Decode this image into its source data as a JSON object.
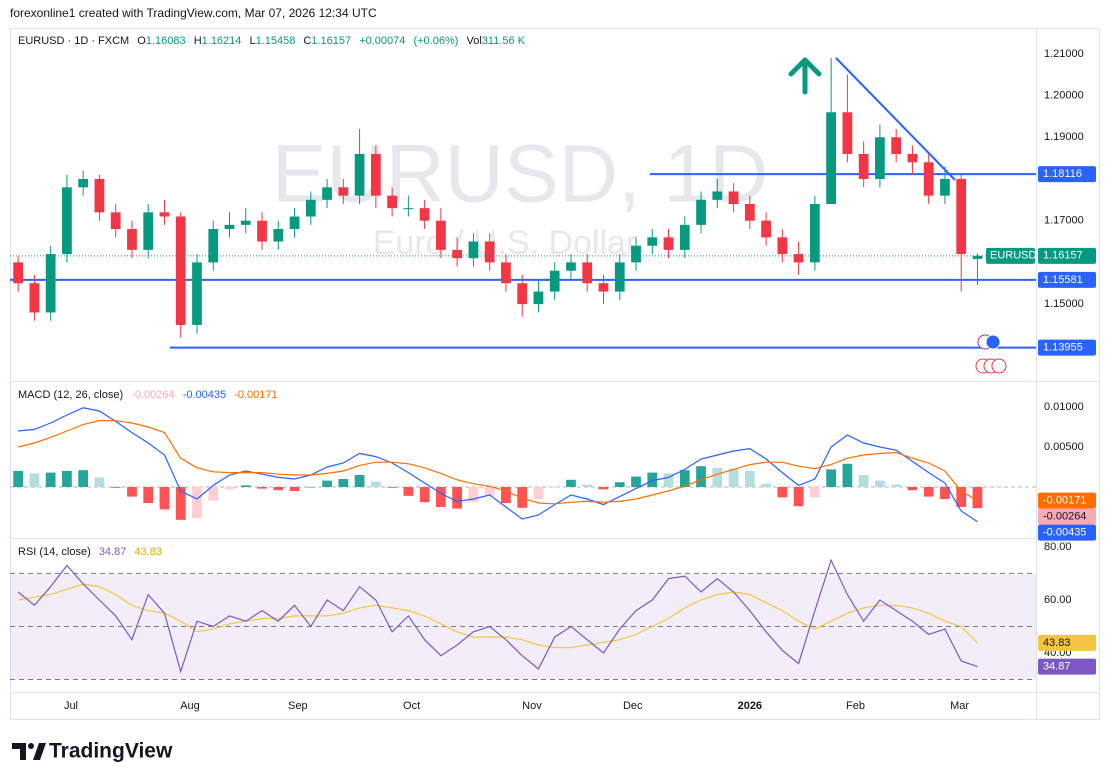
{
  "header": {
    "attribution": "forexonline1 created with TradingView.com, Mar 07, 2026 12:34 UTC"
  },
  "chart_data": [
    {
      "type": "candlestick",
      "title": "EURUSD · 1D · FXCM",
      "watermark_title": "EURUSD, 1D",
      "watermark_subtitle": "Euro / U.S. Dollar",
      "symbol": "EURUSD",
      "ohlc_labels": [
        "O",
        "H",
        "L",
        "C"
      ],
      "change": {
        "value": 0.00074,
        "label": "+0.00074"
      },
      "change_pct": {
        "value": 0.06,
        "label": "(+0.06%)"
      },
      "volume_label": "Vol",
      "volume": {
        "value": 311560,
        "label": "311.56 K"
      },
      "up_color": "#089981",
      "down_color": "#f23645",
      "level_color": "#2962ff",
      "open": [
        1.16,
        1.155,
        1.148,
        1.162,
        1.178,
        1.18,
        1.172,
        1.168,
        1.163,
        1.172,
        1.171,
        1.145,
        1.16,
        1.168,
        1.169,
        1.17,
        1.165,
        1.168,
        1.171,
        1.175,
        1.178,
        1.176,
        1.186,
        1.176,
        1.173,
        1.173,
        1.17,
        1.163,
        1.161,
        1.165,
        1.16,
        1.155,
        1.15,
        1.153,
        1.158,
        1.16,
        1.155,
        1.153,
        1.16,
        1.164,
        1.166,
        1.163,
        1.169,
        1.175,
        1.177,
        1.174,
        1.17,
        1.166,
        1.162,
        1.16,
        1.174,
        1.196,
        1.186,
        1.18,
        1.19,
        1.186,
        1.184,
        1.176,
        1.18,
        1.16083
      ],
      "high": [
        1.1615,
        1.157,
        1.164,
        1.181,
        1.182,
        1.181,
        1.174,
        1.17,
        1.174,
        1.175,
        1.172,
        1.162,
        1.17,
        1.172,
        1.173,
        1.172,
        1.17,
        1.173,
        1.177,
        1.18,
        1.18,
        1.192,
        1.188,
        1.178,
        1.176,
        1.175,
        1.173,
        1.166,
        1.167,
        1.167,
        1.162,
        1.157,
        1.156,
        1.16,
        1.162,
        1.162,
        1.157,
        1.162,
        1.166,
        1.168,
        1.168,
        1.171,
        1.177,
        1.18,
        1.179,
        1.176,
        1.172,
        1.168,
        1.165,
        1.176,
        1.209,
        1.205,
        1.189,
        1.193,
        1.192,
        1.188,
        1.186,
        1.183,
        1.181,
        1.16214
      ],
      "low": [
        1.153,
        1.146,
        1.146,
        1.16,
        1.176,
        1.17,
        1.166,
        1.161,
        1.161,
        1.169,
        1.142,
        1.143,
        1.158,
        1.166,
        1.167,
        1.163,
        1.163,
        1.166,
        1.169,
        1.173,
        1.174,
        1.174,
        1.173,
        1.171,
        1.171,
        1.168,
        1.161,
        1.159,
        1.159,
        1.158,
        1.153,
        1.147,
        1.148,
        1.151,
        1.156,
        1.153,
        1.15,
        1.151,
        1.158,
        1.162,
        1.161,
        1.161,
        1.167,
        1.173,
        1.172,
        1.168,
        1.164,
        1.16,
        1.157,
        1.158,
        1.174,
        1.184,
        1.178,
        1.178,
        1.184,
        1.181,
        1.174,
        1.174,
        1.153,
        1.15458
      ],
      "close": [
        1.155,
        1.148,
        1.162,
        1.178,
        1.18,
        1.172,
        1.168,
        1.163,
        1.172,
        1.171,
        1.145,
        1.16,
        1.168,
        1.169,
        1.17,
        1.165,
        1.168,
        1.171,
        1.175,
        1.178,
        1.176,
        1.186,
        1.176,
        1.173,
        1.173,
        1.17,
        1.163,
        1.161,
        1.165,
        1.16,
        1.155,
        1.15,
        1.153,
        1.158,
        1.16,
        1.155,
        1.153,
        1.16,
        1.164,
        1.166,
        1.163,
        1.169,
        1.175,
        1.177,
        1.174,
        1.17,
        1.166,
        1.162,
        1.16,
        1.174,
        1.196,
        1.186,
        1.18,
        1.19,
        1.186,
        1.184,
        1.176,
        1.18,
        1.162,
        1.16157
      ],
      "levels": [
        1.18116,
        1.15581,
        1.13955
      ],
      "ylim": [
        1.1318,
        1.2162
      ],
      "yticks": [
        {
          "value": 1.21,
          "label": "1.21000"
        },
        {
          "value": 1.2,
          "label": "1.20000"
        },
        {
          "value": 1.19,
          "label": "1.19000"
        },
        {
          "value": 1.17,
          "label": "1.17000"
        },
        {
          "value": 1.15,
          "label": "1.15000"
        }
      ],
      "xlim": [
        -0.5,
        62.6
      ],
      "xticks": [
        {
          "value": 3.25,
          "label": "Jul"
        },
        {
          "value": 10.57,
          "label": "Aug"
        },
        {
          "value": 17.2,
          "label": "Sep"
        },
        {
          "value": 24.2,
          "label": "Oct"
        },
        {
          "value": 31.6,
          "label": "Nov"
        },
        {
          "value": 37.8,
          "label": "Dec"
        },
        {
          "value": 45.0,
          "label": "2026"
        },
        {
          "value": 51.5,
          "label": "Feb"
        },
        {
          "value": 57.9,
          "label": "Mar"
        }
      ]
    },
    {
      "type": "macd",
      "title": "MACD (12, 26, close)",
      "ylim": [
        -0.00625,
        0.01275
      ],
      "yticks": [
        {
          "value": 0.01,
          "label": "0.01000"
        },
        {
          "value": 0.005,
          "label": "0.00500"
        }
      ],
      "series": [
        {
          "name": "MACD",
          "color": "#2962ff",
          "values": [
            0.007,
            0.0072,
            0.008,
            0.009,
            0.0099,
            0.0095,
            0.0082,
            0.0068,
            0.0055,
            0.004,
            -0.0005,
            -0.0015,
            0.0002,
            0.0015,
            0.002,
            0.0016,
            0.0012,
            0.001,
            0.0015,
            0.0025,
            0.003,
            0.0042,
            0.0038,
            0.003,
            0.0018,
            0.0005,
            -0.0008,
            -0.0018,
            -0.0015,
            -0.001,
            -0.0025,
            -0.004,
            -0.0035,
            -0.0022,
            -0.001,
            -0.0015,
            -0.0022,
            -0.0012,
            -0.0002,
            0.0008,
            0.0012,
            0.0022,
            0.0035,
            0.004,
            0.0045,
            0.0048,
            0.0035,
            0.0018,
            0.0002,
            0.001,
            0.005,
            0.0065,
            0.0055,
            0.005,
            0.0046,
            0.0032,
            0.0018,
            0.0005,
            -0.003,
            -0.00435
          ]
        },
        {
          "name": "Signal",
          "color": "#ff6d00",
          "values": [
            0.005,
            0.0055,
            0.0062,
            0.007,
            0.0078,
            0.0083,
            0.0083,
            0.008,
            0.0075,
            0.0068,
            0.0036,
            0.0024,
            0.0019,
            0.0018,
            0.0018,
            0.0018,
            0.0016,
            0.0015,
            0.0015,
            0.0017,
            0.002,
            0.0027,
            0.0031,
            0.0031,
            0.0029,
            0.0024,
            0.0017,
            0.0009,
            0.0004,
            0.0001,
            -0.0005,
            -0.0014,
            -0.002,
            -0.0021,
            -0.0019,
            -0.0018,
            -0.0019,
            -0.0018,
            -0.0015,
            -0.001,
            -0.0005,
            0.0001,
            0.0009,
            0.0016,
            0.0022,
            0.0028,
            0.0031,
            0.0031,
            0.0026,
            0.0023,
            0.0028,
            0.0036,
            0.004,
            0.0042,
            0.0043,
            0.0036,
            0.003,
            0.002,
            -0.0005,
            -0.00171
          ]
        },
        {
          "name": "Histogram",
          "color": "#f7a9b4",
          "colors": {
            "up_grow": "#26a69a",
            "up_fall": "#b2dfdb",
            "down_grow": "#ff5252",
            "down_fall": "#ffcdd2"
          },
          "values": [
            0.002,
            0.0017,
            0.0018,
            0.002,
            0.0021,
            0.0012,
            -0.0001,
            -0.0012,
            -0.002,
            -0.0028,
            -0.0041,
            -0.0039,
            -0.0017,
            -0.0003,
            0.0002,
            -0.0002,
            -0.0004,
            -0.0005,
            0,
            0.0008,
            0.001,
            0.0015,
            0.0007,
            -0.0001,
            -0.0011,
            -0.0019,
            -0.0025,
            -0.0027,
            -0.0019,
            -0.0011,
            -0.002,
            -0.0026,
            -0.0015,
            -0.0001,
            0.0009,
            0.0003,
            -0.0003,
            0.0006,
            0.0013,
            0.0018,
            0.0017,
            0.0021,
            0.0026,
            0.0024,
            0.0023,
            0.002,
            0.0004,
            -0.0013,
            -0.0024,
            -0.0013,
            0.0022,
            0.0029,
            0.0015,
            0.0008,
            0.0003,
            -0.0004,
            -0.0012,
            -0.0015,
            -0.0025,
            -0.00264
          ]
        }
      ]
    },
    {
      "type": "rsi",
      "title": "RSI (14, close)",
      "ylim": [
        25.3,
        82.6
      ],
      "yticks": [
        {
          "value": 80,
          "label": "80.00"
        },
        {
          "value": 60,
          "label": "60.00"
        },
        {
          "value": 40,
          "label": "40.00"
        }
      ],
      "bands": [
        70,
        50,
        30
      ],
      "band_fill": "#7e57c2",
      "series": [
        {
          "name": "RSI",
          "color": "#7e57c2",
          "values": [
            63,
            58,
            65,
            73,
            66,
            60,
            54,
            45,
            62,
            55,
            33,
            52,
            50,
            54,
            52,
            56,
            52,
            58,
            50,
            60,
            56,
            65,
            60,
            48,
            54,
            45,
            39,
            43,
            48,
            50,
            45,
            39,
            34,
            46,
            50,
            45,
            40,
            49,
            56,
            60,
            68,
            69,
            63,
            68,
            63,
            56,
            48,
            41,
            36,
            56,
            75,
            62,
            52,
            60,
            56,
            52,
            47,
            49,
            37,
            34.87
          ]
        },
        {
          "name": "RSI MA",
          "color": "#f5c542",
          "values": [
            60,
            61,
            62,
            64,
            66,
            65,
            62,
            58,
            56,
            55,
            52,
            48,
            49,
            51,
            52,
            53,
            53,
            54,
            54,
            54,
            55,
            57,
            58,
            57,
            56,
            54,
            51,
            48,
            46,
            46,
            46,
            45,
            43,
            42,
            42,
            43,
            44,
            45,
            47,
            50,
            53,
            57,
            60,
            62,
            63,
            62,
            59,
            56,
            52,
            49,
            52,
            55,
            57,
            58,
            58,
            57,
            55,
            52,
            50,
            43.83
          ]
        }
      ]
    }
  ],
  "footer": {
    "brand": "TradingView"
  }
}
